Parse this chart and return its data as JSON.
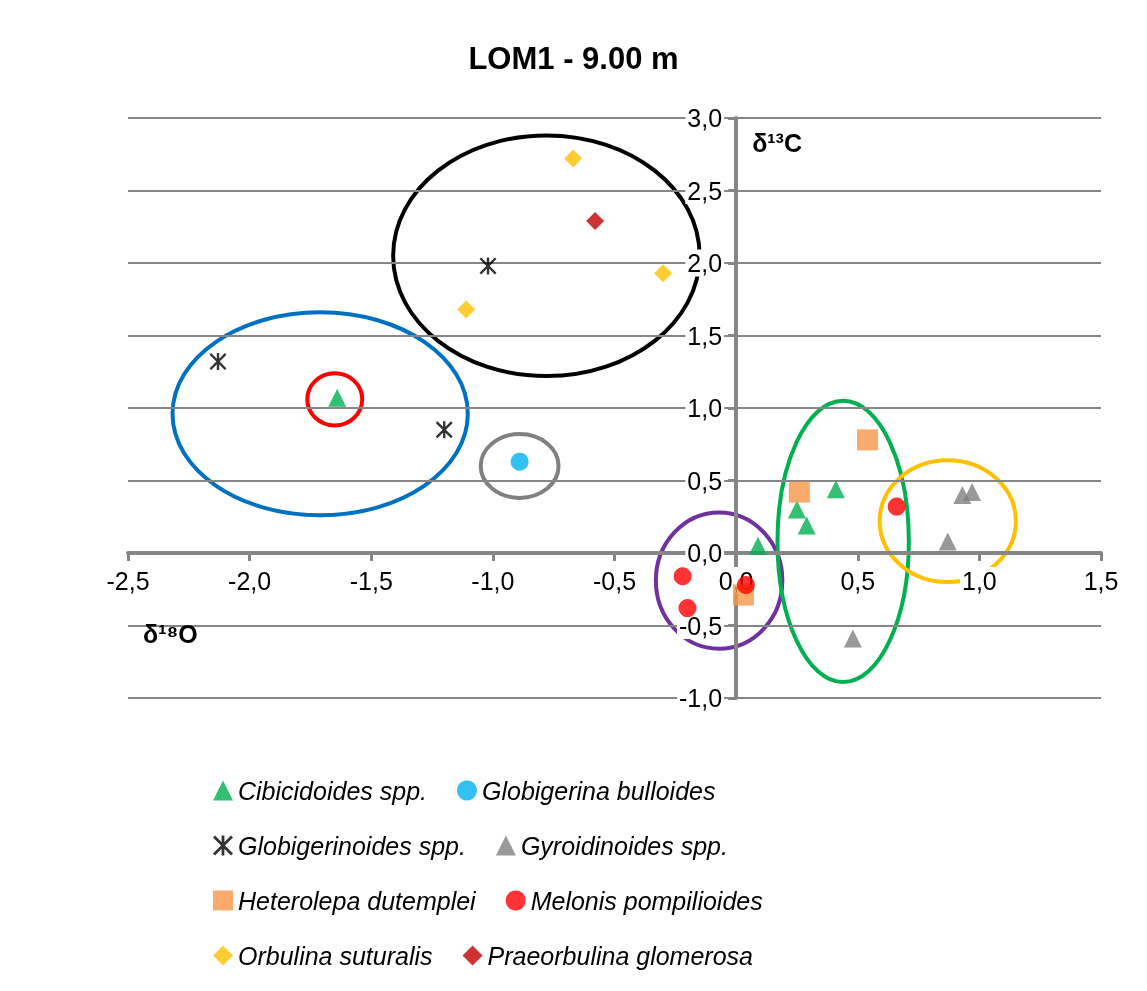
{
  "chart_data": {
    "type": "scatter",
    "title": "LOM1 - 9.00 m",
    "xlabel": "δ¹⁸O",
    "ylabel": "δ¹³C",
    "xlim": [
      -2.5,
      1.5
    ],
    "xticks": [
      {
        "value": -2.5,
        "label": "-2,5"
      },
      {
        "value": -2,
        "label": "-2,0"
      },
      {
        "value": -1.5,
        "label": "-1,5"
      },
      {
        "value": -1,
        "label": "-1,0"
      },
      {
        "value": -0.5,
        "label": "-0,5"
      },
      {
        "value": 0,
        "label": "0,0"
      },
      {
        "value": 0.5,
        "label": "0,5"
      },
      {
        "value": 1,
        "label": "1,0"
      },
      {
        "value": 1.5,
        "label": "1,5"
      }
    ],
    "ylim": [
      -1,
      3
    ],
    "yticks": [
      {
        "value": -1,
        "label": "-1,0"
      },
      {
        "value": -0.5,
        "label": "-0,5"
      },
      {
        "value": 0,
        "label": "0,0"
      },
      {
        "value": 0.5,
        "label": "0,5"
      },
      {
        "value": 1,
        "label": "1,0"
      },
      {
        "value": 1.5,
        "label": "1,5"
      },
      {
        "value": 2,
        "label": "2,0"
      },
      {
        "value": 2.5,
        "label": "2,5"
      },
      {
        "value": 3,
        "label": "3,0"
      }
    ],
    "grid": "y",
    "legend": "bottom",
    "series": [
      {
        "name": "Cibicidoides spp.",
        "color": "#00b050",
        "marker": "triangle",
        "x": [
          -1.64,
          0.09,
          0.41,
          0.25,
          0.29
        ],
        "values": [
          1.07,
          0.05,
          0.44,
          0.3,
          0.19
        ]
      },
      {
        "name": "Globigerina bulloides",
        "color": "#00b0f0",
        "marker": "circle",
        "x": [
          -0.89
        ],
        "values": [
          0.63
        ]
      },
      {
        "name": "Globigerinoides spp.",
        "color": "#000000",
        "marker": "cross",
        "x": [
          -2.13,
          -1.02,
          -1.2
        ],
        "values": [
          1.32,
          1.98,
          0.85
        ]
      },
      {
        "name": "Gyroidinoides spp.",
        "color": "#808080",
        "marker": "triangle",
        "x": [
          0.48,
          0.87,
          0.93,
          0.97
        ],
        "values": [
          -0.59,
          0.08,
          0.4,
          0.42
        ]
      },
      {
        "name": "Heterolepa dutemplei",
        "color": "#f79646",
        "marker": "square",
        "x": [
          0.54,
          0.26,
          0.03
        ],
        "values": [
          0.78,
          0.42,
          -0.29
        ]
      },
      {
        "name": "Melonis pompilioides",
        "color": "#ff0000",
        "marker": "circle",
        "x": [
          0.66,
          -0.22,
          -0.2,
          0.04
        ],
        "values": [
          0.32,
          -0.16,
          -0.38,
          -0.22
        ]
      },
      {
        "name": "Orbulina suturalis",
        "color": "#ffc000",
        "marker": "diamond",
        "x": [
          -0.67,
          -1.11,
          -0.3
        ],
        "values": [
          2.72,
          1.68,
          1.93
        ]
      },
      {
        "name": "Praeorbulina glomerosa",
        "color": "#c00000",
        "marker": "diamond",
        "x": [
          -0.58
        ],
        "values": [
          2.29
        ]
      }
    ]
  }
}
